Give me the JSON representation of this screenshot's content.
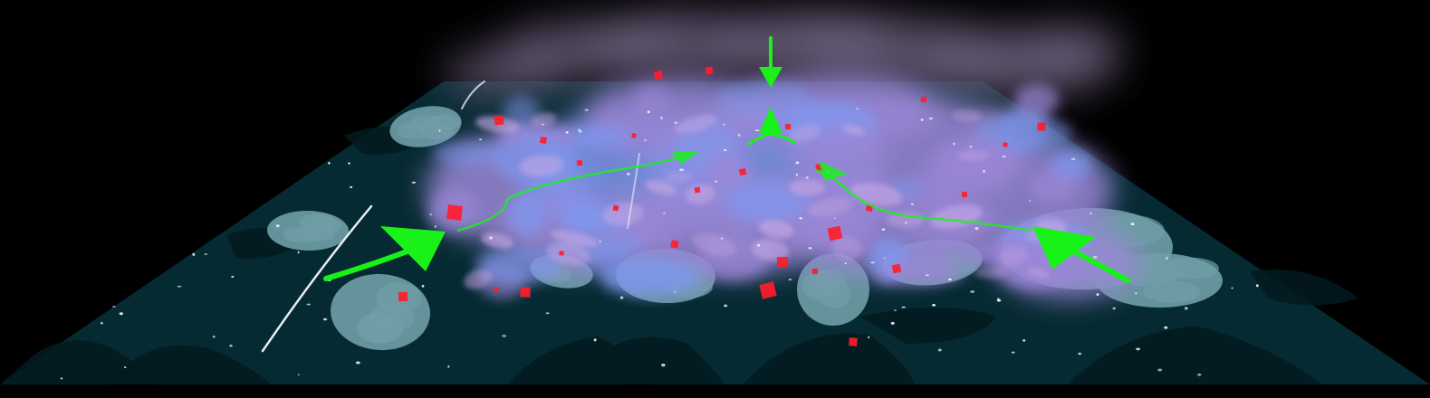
{
  "colors": {
    "background": "#000000",
    "ground": "#062a32",
    "ground_dark": "#031a20",
    "cloud_shadow": "#6f9ea6",
    "haze_purple": "#9a86d6",
    "haze_blue": "#7f97ee",
    "haze_pink": "#c4a6e4",
    "smoke_top": "#6c607e",
    "particle_red": "#ff1c2c",
    "sparkle": "#e8f0f4",
    "arrow_green": "#19f219",
    "streak_white": "#e8eef0"
  },
  "icons": {
    "arrow_down": "arrow-down-icon",
    "arrow_up": "arrow-up-icon",
    "arrow_inflow": "inflow-arrow-icon"
  }
}
